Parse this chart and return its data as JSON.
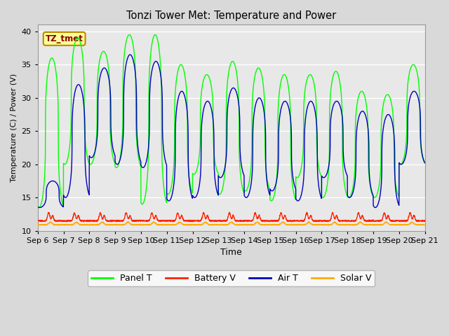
{
  "title": "Tonzi Tower Met: Temperature and Power",
  "xlabel": "Time",
  "ylabel": "Temperature (C) / Power (V)",
  "ylim": [
    10,
    41
  ],
  "background_color": "#d9d9d9",
  "plot_bg_color": "#e8e8e8",
  "legend_colors": [
    "#00ff00",
    "#ff2200",
    "#0000bb",
    "#ffaa00"
  ],
  "legend_labels": [
    "Panel T",
    "Battery V",
    "Air T",
    "Solar V"
  ],
  "annotation_text": "TZ_tmet",
  "annotation_bg": "#ffff99",
  "annotation_fg": "#880000",
  "panel_T_peaks": [
    36.0,
    39.0,
    37.0,
    39.5,
    39.5,
    35.0,
    33.5,
    35.5,
    34.5,
    33.5,
    33.5,
    34.0,
    31.0,
    30.5,
    35.0
  ],
  "panel_T_troughs": [
    13.5,
    20.0,
    20.0,
    19.5,
    14.0,
    15.5,
    18.5,
    15.5,
    16.0,
    14.5,
    18.0,
    15.0,
    15.0,
    15.0,
    20.0
  ],
  "air_T_peaks": [
    17.5,
    32.0,
    34.5,
    36.5,
    35.5,
    31.0,
    29.5,
    31.5,
    30.0,
    29.5,
    29.5,
    29.5,
    28.0,
    27.5,
    31.0
  ],
  "air_T_troughs": [
    13.5,
    15.0,
    21.0,
    20.0,
    19.5,
    14.5,
    15.0,
    18.0,
    15.0,
    16.0,
    14.5,
    18.0,
    15.0,
    13.5,
    20.0
  ],
  "tick_labels": [
    "Sep 6",
    "Sep 7",
    "Sep 8",
    "Sep 9",
    "Sep 10",
    "Sep 11",
    "Sep 12",
    "Sep 13",
    "Sep 14",
    "Sep 15",
    "Sep 16",
    "Sep 17",
    "Sep 18",
    "Sep 19",
    "Sep 20",
    "Sep 21"
  ],
  "yticks": [
    10,
    15,
    20,
    25,
    30,
    35,
    40
  ]
}
